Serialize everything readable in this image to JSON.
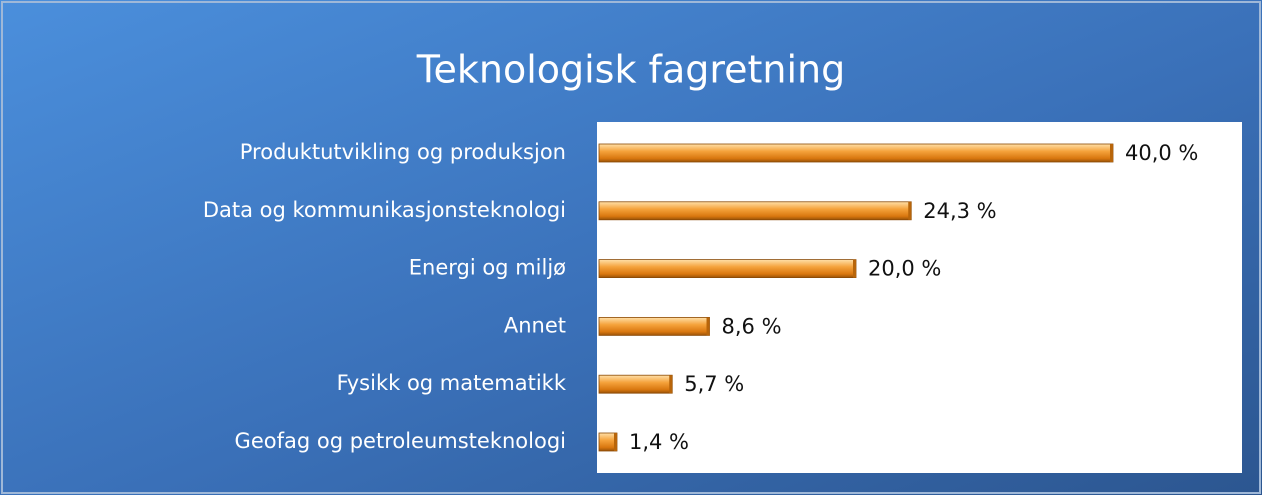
{
  "chart_data": {
    "type": "bar",
    "orientation": "horizontal",
    "title": "Teknologisk fagretning",
    "categories": [
      "Produktutvikling og produksjon",
      "Data og kommunikasjonsteknologi",
      "Energi og miljø",
      "Annet",
      "Fysikk og matematikk",
      "Geofag og petroleumsteknologi"
    ],
    "values": [
      40.0,
      24.3,
      20.0,
      8.6,
      5.7,
      1.4
    ],
    "value_labels": [
      "40,0 %",
      "24,3 %",
      "20,0 %",
      "8,6 %",
      "5,7 %",
      "1,4 %"
    ],
    "color": "#f0901e"
  }
}
